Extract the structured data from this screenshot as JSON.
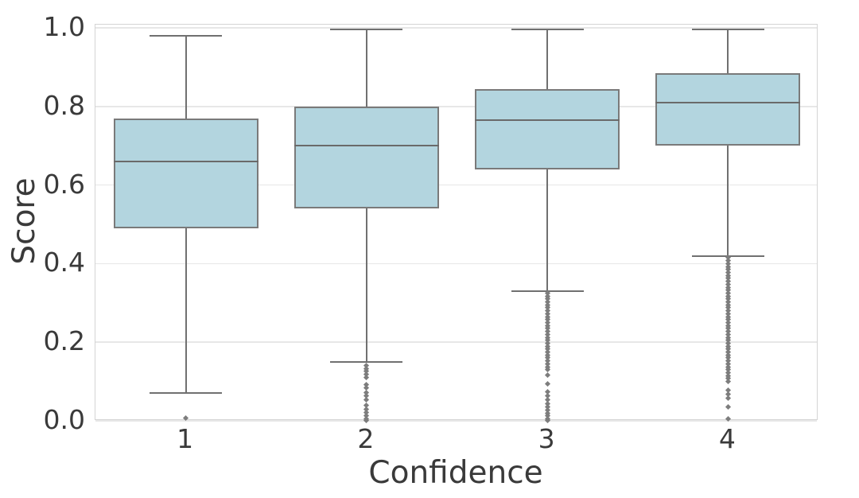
{
  "figure": {
    "background": "#ffffff"
  },
  "chart_data": {
    "type": "boxplot",
    "title": "",
    "xlabel": "Confidence",
    "ylabel": "Score",
    "categories": [
      "1",
      "2",
      "3",
      "4"
    ],
    "ylim": [
      0.0,
      1.0
    ],
    "ytick_labels": [
      "0.0",
      "0.2",
      "0.4",
      "0.6",
      "0.8",
      "1.0"
    ],
    "ytick_values": [
      0.0,
      0.2,
      0.4,
      0.6,
      0.8,
      1.0
    ],
    "grid": "horizontal, light gray, on",
    "legend": "none",
    "colors": {
      "box_fill": "#b3d5df",
      "box_edge": "#7a7a7a",
      "median": "#6a6a6a",
      "whisker": "#707070",
      "outlier": "#7d7d7d",
      "gridline": "#e7e7e7",
      "spine": "#d4d4d4",
      "text": "#3a3a3a"
    },
    "boxes": [
      {
        "category": "1",
        "whisker_low": 0.07,
        "q1": 0.49,
        "median": 0.66,
        "q3": 0.77,
        "whisker_high": 0.98,
        "outliers": [
          0.008
        ]
      },
      {
        "category": "2",
        "whisker_low": 0.15,
        "q1": 0.54,
        "median": 0.7,
        "q3": 0.8,
        "whisker_high": 0.995,
        "outliers": [
          0.14,
          0.133,
          0.126,
          0.118,
          0.111,
          0.093,
          0.083,
          0.071,
          0.063,
          0.053,
          0.04,
          0.03,
          0.022,
          0.014,
          0.006,
          0.001
        ]
      },
      {
        "category": "3",
        "whisker_low": 0.33,
        "q1": 0.64,
        "median": 0.765,
        "q3": 0.845,
        "whisker_high": 0.995,
        "outliers": [
          0.325,
          0.3175,
          0.31,
          0.3025,
          0.295,
          0.2875,
          0.28,
          0.2725,
          0.265,
          0.2575,
          0.25,
          0.2425,
          0.235,
          0.2275,
          0.22,
          0.2125,
          0.205,
          0.1975,
          0.19,
          0.1825,
          0.175,
          0.1675,
          0.16,
          0.1525,
          0.145,
          0.1375,
          0.13,
          0.117,
          0.095,
          0.073,
          0.063,
          0.053,
          0.043,
          0.035,
          0.027,
          0.02,
          0.013,
          0.006,
          0.001
        ]
      },
      {
        "category": "4",
        "whisker_low": 0.42,
        "q1": 0.7,
        "median": 0.81,
        "q3": 0.885,
        "whisker_high": 0.995,
        "outliers": [
          0.415,
          0.4075,
          0.4,
          0.3925,
          0.385,
          0.3775,
          0.37,
          0.3625,
          0.355,
          0.3475,
          0.34,
          0.3325,
          0.325,
          0.3175,
          0.31,
          0.3025,
          0.295,
          0.2875,
          0.28,
          0.2725,
          0.265,
          0.2575,
          0.25,
          0.2425,
          0.235,
          0.2275,
          0.22,
          0.2125,
          0.205,
          0.1975,
          0.19,
          0.1825,
          0.175,
          0.1675,
          0.16,
          0.1525,
          0.145,
          0.1375,
          0.13,
          0.1225,
          0.115,
          0.1075,
          0.1,
          0.077,
          0.067,
          0.057,
          0.036,
          0.006
        ]
      }
    ]
  }
}
